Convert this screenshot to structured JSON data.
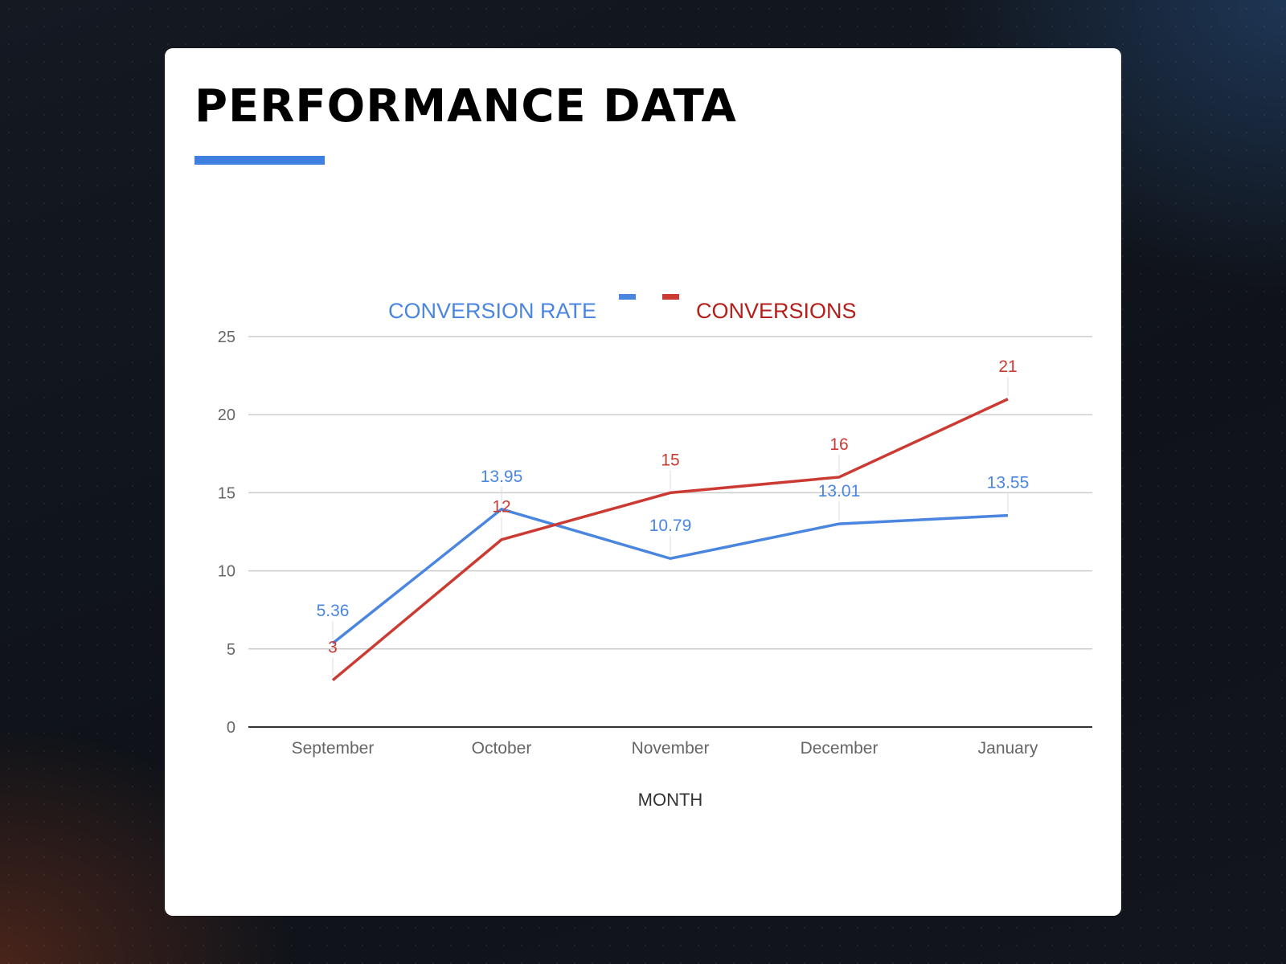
{
  "page": {
    "title": "PERFORMANCE DATA"
  },
  "colors": {
    "accent": "#3f7fe0",
    "conversion_rate": "#4a86e0",
    "conversions": "#cc3b33",
    "legend_conversions_text": "#b3201c",
    "axis_text": "#666666",
    "gridline": "#cccccc",
    "baseline": "#333333"
  },
  "chart_data": {
    "type": "line",
    "categories": [
      "September",
      "October",
      "November",
      "December",
      "January"
    ],
    "series": [
      {
        "name": "CONVERSION RATE",
        "color": "#4a86e0",
        "values": [
          5.36,
          13.95,
          10.79,
          13.01,
          13.55
        ],
        "labels": [
          "5.36",
          "13.95",
          "10.79",
          "13.01",
          "13.55"
        ]
      },
      {
        "name": "CONVERSIONS",
        "color": "#cc3b33",
        "values": [
          3,
          12,
          15,
          16,
          21
        ],
        "labels": [
          "3",
          "12",
          "15",
          "16",
          "21"
        ]
      }
    ],
    "xlabel": "MONTH",
    "ylabel": "",
    "ylim": [
      0,
      25
    ],
    "yticks": [
      "0",
      "5",
      "10",
      "15",
      "20",
      "25"
    ],
    "grid": true,
    "legend": "top-center",
    "data_labels": true
  }
}
